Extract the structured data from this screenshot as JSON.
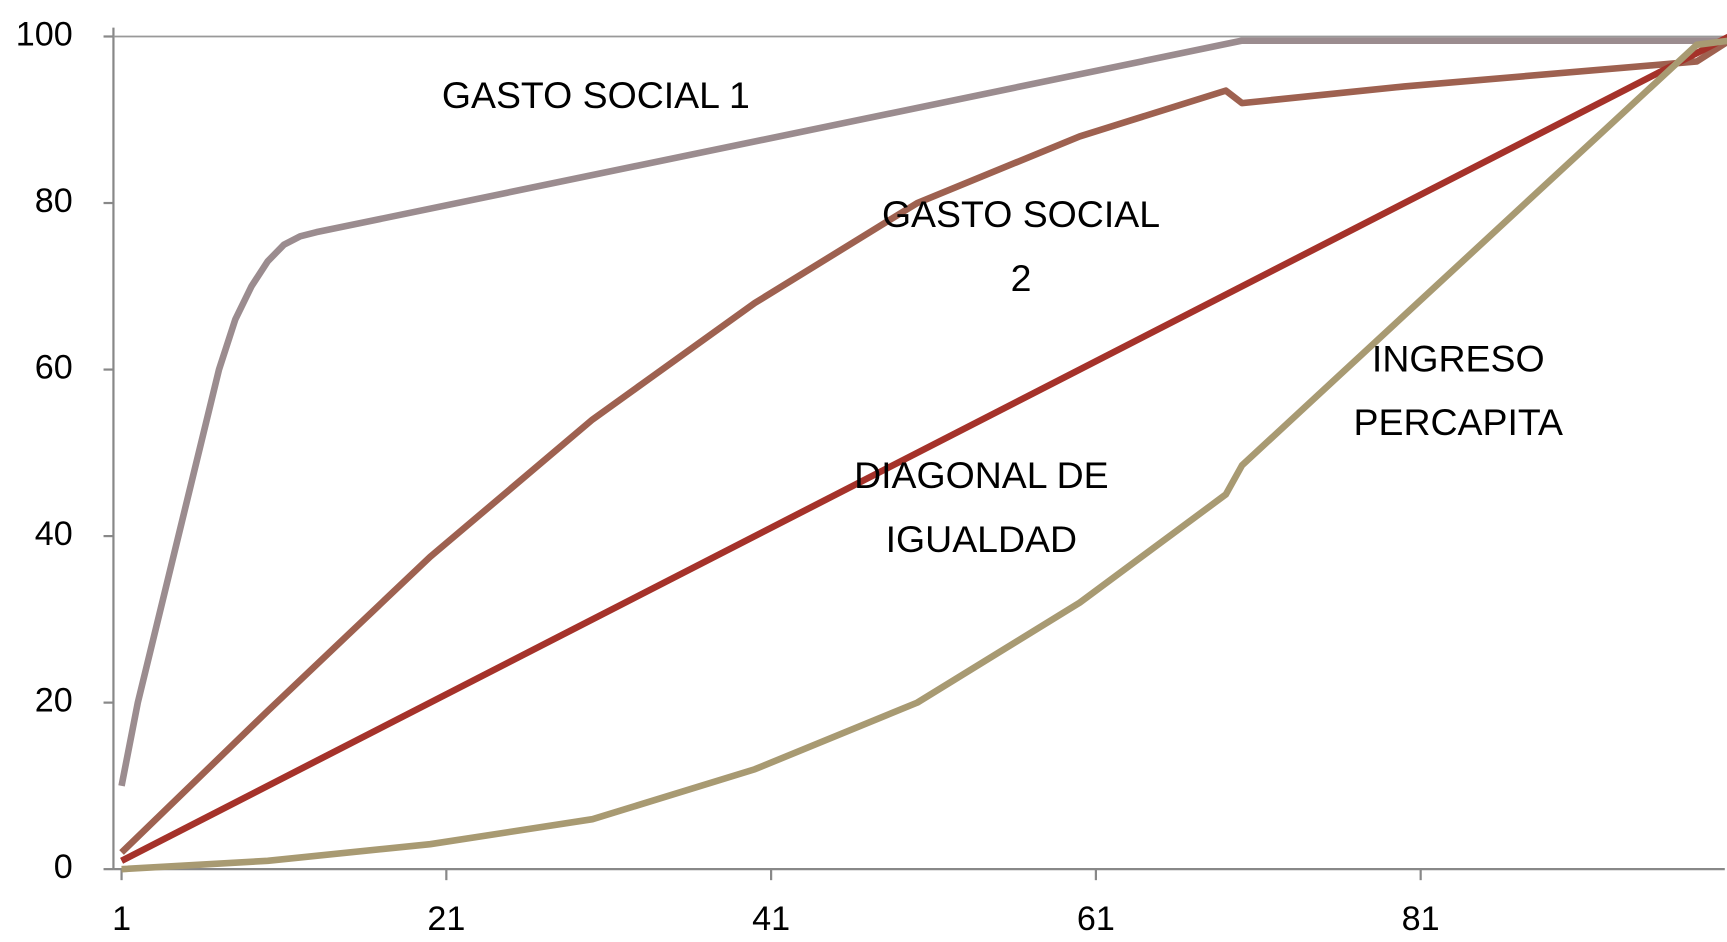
{
  "chart_data": {
    "type": "line",
    "xlim": [
      0.5,
      100
    ],
    "xticks": [
      1,
      21,
      41,
      61,
      81
    ],
    "ylim": [
      0,
      100
    ],
    "yticks": [
      0,
      20,
      40,
      60,
      80,
      100
    ],
    "series": [
      {
        "name": "GASTO SOCIAL 1",
        "color": "#9b8c8f",
        "x": [
          1,
          2,
          7,
          8,
          9,
          10,
          11,
          12,
          13,
          70,
          100
        ],
        "values": [
          10,
          20,
          60,
          66,
          70,
          73,
          75,
          76,
          76.5,
          99.5,
          99.5
        ]
      },
      {
        "name": "GASTO SOCIAL 2",
        "color": "#9e6150",
        "x": [
          1,
          10,
          20,
          30,
          40,
          50,
          60,
          69,
          70,
          80,
          98,
          100
        ],
        "values": [
          2,
          19,
          37.5,
          54,
          68,
          80,
          88,
          93.5,
          92,
          94,
          97,
          99.5
        ]
      },
      {
        "name": "DIAGONAL DE IGUALDAD",
        "color": "#a5322a",
        "x": [
          1,
          100
        ],
        "values": [
          1,
          100
        ]
      },
      {
        "name": "INGRESO PERCAPITA",
        "color": "#a89a72",
        "x": [
          1,
          10,
          20,
          30,
          40,
          50,
          60,
          69,
          70,
          98,
          100
        ],
        "values": [
          0,
          1,
          3,
          6,
          12,
          20,
          32,
          45,
          48.5,
          99,
          99.5
        ]
      }
    ],
    "annotations": [
      [
        "GASTO SOCIAL 1"
      ],
      [
        "GASTO SOCIAL",
        "2"
      ],
      [
        "DIAGONAL DE",
        "IGUALDAD"
      ],
      [
        "INGRESO",
        "PERCAPITA"
      ]
    ]
  }
}
